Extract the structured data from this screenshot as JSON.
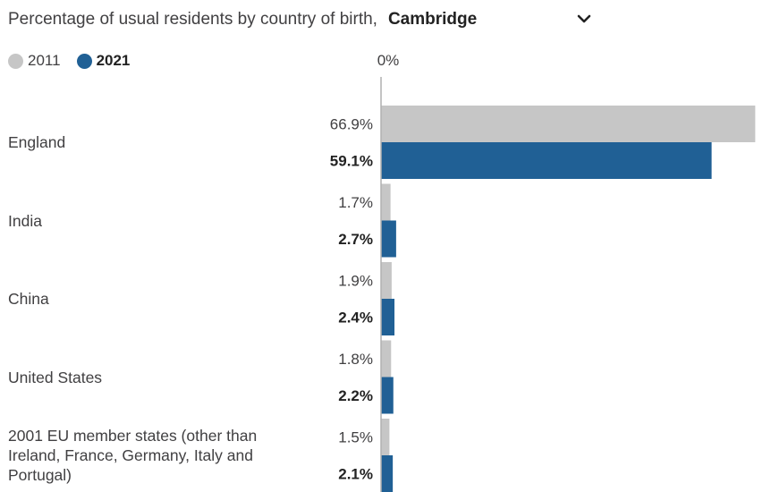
{
  "header": {
    "title": "Percentage of usual residents by country of birth,",
    "selected_area": "Cambridge",
    "dropdown_icon": "chevron-down-icon"
  },
  "colors": {
    "series_2011": "#c6c6c6",
    "series_2021": "#206095",
    "text": "#414042",
    "axis": "#b0b0b0"
  },
  "chart_data": {
    "type": "bar",
    "orientation": "horizontal",
    "title": "Percentage of usual residents by country of birth, Cambridge",
    "axis_tick_label": "0%",
    "xlim": [
      0,
      67
    ],
    "categories": [
      "England",
      "India",
      "China",
      "United States",
      "2001 EU member states (other than Ireland, France, Germany, Italy and Portugal)"
    ],
    "series": [
      {
        "name": "2011",
        "values": [
          66.9,
          1.7,
          1.9,
          1.8,
          1.5
        ],
        "labels": [
          "66.9%",
          "1.7%",
          "1.9%",
          "1.8%",
          "1.5%"
        ]
      },
      {
        "name": "2021",
        "values": [
          59.1,
          2.7,
          2.4,
          2.2,
          2.1
        ],
        "labels": [
          "59.1%",
          "2.7%",
          "2.4%",
          "2.2%",
          "2.1%"
        ]
      }
    ],
    "legend": [
      "2011",
      "2021"
    ],
    "legend_position": "top-left"
  }
}
